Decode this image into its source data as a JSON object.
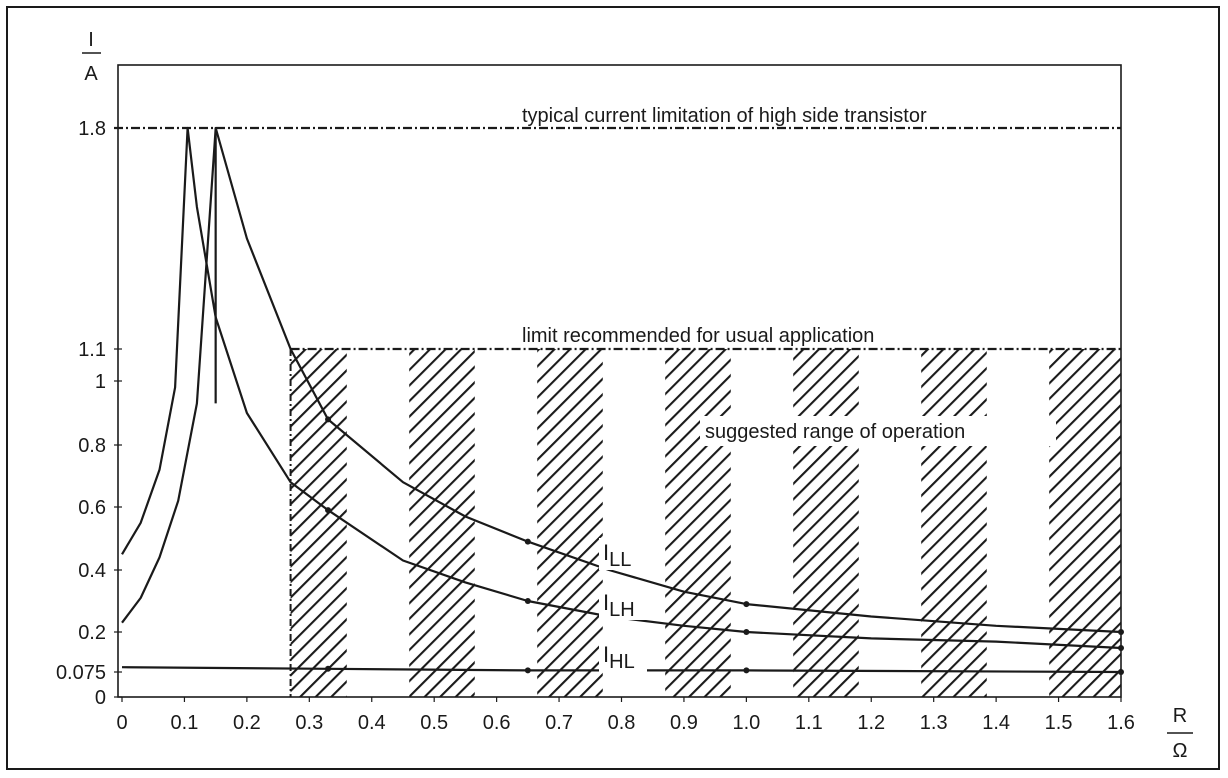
{
  "chart_data": {
    "type": "line",
    "title": "",
    "xlabel": {
      "num": "R",
      "den": "Ω"
    },
    "ylabel": {
      "num": "I",
      "den": "A"
    },
    "xlim": [
      0,
      1.6
    ],
    "ylim": [
      0,
      2.0
    ],
    "x_ticks": [
      "0",
      "0.1",
      "0.2",
      "0.3",
      "0.4",
      "0.5",
      "0.6",
      "0.7",
      "0.8",
      "0.9",
      "1.0",
      "1.1",
      "1.2",
      "1.3",
      "1.4",
      "1.5",
      "1.6"
    ],
    "y_ticks": [
      "0",
      "0.075",
      "0.2",
      "0.4",
      "0.6",
      "0.8",
      "1",
      "1.1",
      "1.8"
    ],
    "grid": false,
    "reference_lines": [
      {
        "y": 1.8,
        "label": "typical current limitation of high side transistor"
      },
      {
        "y": 1.1,
        "label": "limit recommended for usual application"
      }
    ],
    "region": {
      "label": "suggested range of operation",
      "x_start": 0.27,
      "x_end": 1.6,
      "y_top": 1.1,
      "hatch_bands": [
        [
          0.27,
          0.36
        ],
        [
          0.46,
          0.565
        ],
        [
          0.665,
          0.77
        ],
        [
          0.87,
          0.975
        ],
        [
          1.075,
          1.18
        ],
        [
          1.28,
          1.385
        ],
        [
          1.485,
          1.6
        ]
      ]
    },
    "series": [
      {
        "name": "I_LL",
        "label_main": "I",
        "label_sub": "LL",
        "peak": {
          "x": 0.15,
          "y": 1.8,
          "x_rise_start": 0.15
        },
        "x": [
          0,
          0.03,
          0.06,
          0.09,
          0.12,
          0.15,
          0.2,
          0.27,
          0.33,
          0.45,
          0.55,
          0.65,
          0.78,
          0.9,
          1.0,
          1.2,
          1.4,
          1.6
        ],
        "y": [
          0.23,
          0.31,
          0.44,
          0.62,
          0.93,
          1.8,
          1.45,
          1.1,
          0.88,
          0.68,
          0.57,
          0.49,
          0.4,
          0.33,
          0.29,
          0.25,
          0.22,
          0.2
        ]
      },
      {
        "name": "I_LH",
        "label_main": "I",
        "label_sub": "LH",
        "peak": {
          "x": 0.105,
          "y": 1.8
        },
        "x": [
          0,
          0.03,
          0.06,
          0.085,
          0.105,
          0.12,
          0.15,
          0.2,
          0.27,
          0.33,
          0.45,
          0.55,
          0.65,
          0.78,
          0.9,
          1.0,
          1.2,
          1.4,
          1.6
        ],
        "y": [
          0.45,
          0.55,
          0.72,
          0.98,
          1.8,
          1.55,
          1.2,
          0.9,
          0.68,
          0.59,
          0.43,
          0.36,
          0.3,
          0.25,
          0.22,
          0.2,
          0.18,
          0.17,
          0.15
        ]
      },
      {
        "name": "I_HL",
        "label_main": "I",
        "label_sub": "HL",
        "x": [
          0,
          0.33,
          0.65,
          1.0,
          1.6
        ],
        "y": [
          0.09,
          0.085,
          0.08,
          0.08,
          0.075
        ]
      }
    ]
  }
}
